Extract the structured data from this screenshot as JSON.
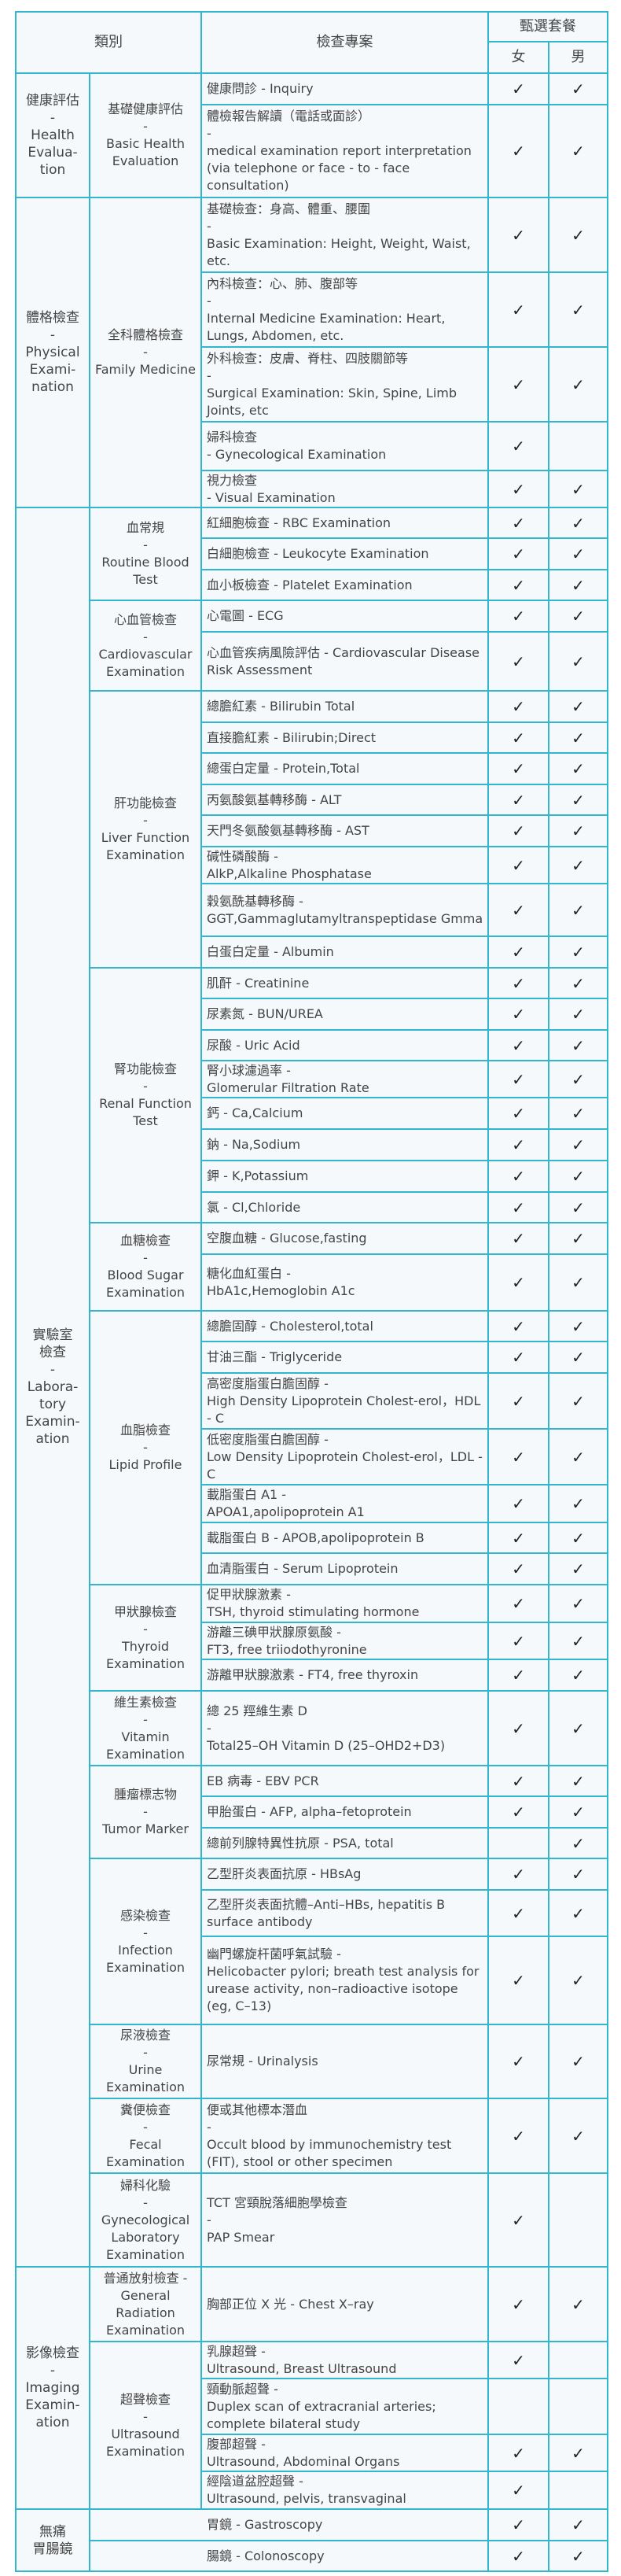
{
  "header": {
    "category": "類別",
    "items": "檢查專案",
    "package": "甄選套餐",
    "female": "女",
    "male": "男"
  },
  "check_glyph": "✓",
  "colors": {
    "border": "#33b6cc",
    "background": "#f6f9fb",
    "text": "#444444"
  },
  "groups": [
    {
      "category": "健康評估\n-\nHealth\nEvalua-\ntion",
      "subgroups": [
        {
          "name": "基礎健康評估\n-\nBasic Health Evaluation",
          "items": [
            {
              "text": "健康問診 - Inquiry",
              "female": true,
              "male": true
            },
            {
              "text": "體檢報告解讀（電話或面診）\n-\nmedical examination report interpretation (via telephone or face - to - face consultation)",
              "female": true,
              "male": true
            }
          ]
        }
      ]
    },
    {
      "category": "體格檢查\n-\nPhysical\nExami-\nnation",
      "subgroups": [
        {
          "name": "全科體格檢查\n-\nFamily Medicine",
          "items": [
            {
              "text": "基礎檢查：身高、體重、腰圍\n-\nBasic Examination: Height, Weight, Waist, etc.",
              "female": true,
              "male": true
            },
            {
              "text": "內科檢查：心、肺、腹部等\n-\nInternal Medicine Examination: Heart, Lungs, Abdomen, etc.",
              "female": true,
              "male": true
            },
            {
              "text": "外科檢查：皮膚、脊柱、四肢關節等\n-\nSurgical Examination: Skin, Spine, Limb Joints, etc",
              "female": true,
              "male": true
            },
            {
              "text": "婦科檢查\n- Gynecological Examination",
              "female": true,
              "male": false
            },
            {
              "text": "視力檢查\n- Visual Examination",
              "female": true,
              "male": true
            }
          ]
        }
      ]
    },
    {
      "category": "實驗室\n檢查\n-\nLabora-\ntory\nExamin-\nation",
      "subgroups": [
        {
          "name": "血常規\n-\nRoutine Blood Test",
          "items": [
            {
              "text": "紅細胞檢查 - RBC Examination",
              "female": true,
              "male": true
            },
            {
              "text": "白細胞檢查 - Leukocyte Examination",
              "female": true,
              "male": true
            },
            {
              "text": "血小板檢查 - Platelet Examination",
              "female": true,
              "male": true
            }
          ]
        },
        {
          "name": "心血管檢查\n-\nCardiovascular Examination",
          "items": [
            {
              "text": "心電圖 - ECG",
              "female": true,
              "male": true
            },
            {
              "text": "心血管疾病風險評估 - Cardiovascular Disease Risk Assessment",
              "female": true,
              "male": true
            }
          ]
        },
        {
          "name": "肝功能檢查\n-\nLiver Function Examination",
          "items": [
            {
              "text": "總膽紅素 - Bilirubin Total",
              "female": true,
              "male": true
            },
            {
              "text": "直接膽紅素 - Bilirubin;Direct",
              "female": true,
              "male": true
            },
            {
              "text": "總蛋白定量 - Protein,Total",
              "female": true,
              "male": true
            },
            {
              "text": "丙氨酸氨基轉移酶 - ALT",
              "female": true,
              "male": true
            },
            {
              "text": "天門冬氨酸氨基轉移酶 - AST",
              "female": true,
              "male": true
            },
            {
              "text": "碱性磷酸酶 -\nAlkP,Alkaline Phosphatase",
              "female": true,
              "male": true
            },
            {
              "text": "穀氨酰基轉移酶 -\nGGT,Gammaglutamyltranspeptidase Gmma",
              "female": true,
              "male": true
            },
            {
              "text": "白蛋白定量 - Albumin",
              "female": true,
              "male": true
            }
          ]
        },
        {
          "name": "腎功能檢查\n-\nRenal Function Test",
          "items": [
            {
              "text": "肌酐 - Creatinine",
              "female": true,
              "male": true
            },
            {
              "text": "尿素氮 - BUN/UREA",
              "female": true,
              "male": true
            },
            {
              "text": "尿酸 - Uric Acid",
              "female": true,
              "male": true
            },
            {
              "text": "腎小球濾過率 -\nGlomerular Filtration Rate",
              "female": true,
              "male": true
            },
            {
              "text": "鈣 - Ca,Calcium",
              "female": true,
              "male": true
            },
            {
              "text": "鈉 - Na,Sodium",
              "female": true,
              "male": true
            },
            {
              "text": "鉀 - K,Potassium",
              "female": true,
              "male": true
            },
            {
              "text": "氯 - Cl,Chloride",
              "female": true,
              "male": true
            }
          ]
        },
        {
          "name": "血糖檢查\n-\nBlood Sugar Examination",
          "items": [
            {
              "text": "空腹血糖 - Glucose,fasting",
              "female": true,
              "male": true
            },
            {
              "text": "糖化血紅蛋白 -\nHbA1c,Hemoglobin A1c",
              "female": true,
              "male": true
            }
          ]
        },
        {
          "name": "血脂檢查\n-\nLipid Profile",
          "items": [
            {
              "text": "總膽固醇 - Cholesterol,total",
              "female": true,
              "male": true
            },
            {
              "text": "甘油三酯 - Triglyceride",
              "female": true,
              "male": true
            },
            {
              "text": "高密度脂蛋白膽固醇 -\nHigh Density Lipoprotein Cholest-erol，HDL - C",
              "female": true,
              "male": true
            },
            {
              "text": "低密度脂蛋白膽固醇 -\nLow Density Lipoprotein Cholest-erol，LDL - C",
              "female": true,
              "male": true
            },
            {
              "text": "載脂蛋白 A1 -\nAPOA1,apolipoprotein A1",
              "female": true,
              "male": true
            },
            {
              "text": "載脂蛋白 B - APOB,apolipoprotein B",
              "female": true,
              "male": true
            },
            {
              "text": "血清脂蛋白 - Serum Lipoprotein",
              "female": true,
              "male": true
            }
          ]
        },
        {
          "name": "甲狀腺檢查\n-\nThyroid Examination",
          "items": [
            {
              "text": "促甲狀腺激素 -\nTSH, thyroid stimulating hormone",
              "female": true,
              "male": true
            },
            {
              "text": "游離三碘甲狀腺原氨酸 -\nFT3, free triiodothyronine",
              "female": true,
              "male": true
            },
            {
              "text": "游離甲狀腺激素 - FT4, free thyroxin",
              "female": true,
              "male": true
            }
          ]
        },
        {
          "name": "維生素檢查\n-\nVitamin Examination",
          "items": [
            {
              "text": "總 25 羥維生素 D\n-\nTotal25–OH Vitamin D (25–OHD2+D3)",
              "female": true,
              "male": true
            }
          ]
        },
        {
          "name": "腫瘤標志物\n-\nTumor Marker",
          "items": [
            {
              "text": "EB 病毒 - EBV PCR",
              "female": true,
              "male": true
            },
            {
              "text": "甲胎蛋白 - AFP, alpha–fetoprotein",
              "female": true,
              "male": true
            },
            {
              "text": "總前列腺特異性抗原 - PSA, total",
              "female": false,
              "male": true
            }
          ]
        },
        {
          "name": "感染檢查\n-\nInfection Examination",
          "items": [
            {
              "text": "乙型肝炎表面抗原 - HBsAg",
              "female": true,
              "male": true
            },
            {
              "text": "乙型肝炎表面抗體–Anti–HBs, hepatitis B surface antibody",
              "female": true,
              "male": true
            },
            {
              "text": "幽門螺旋杆菌呼氣試驗 -\nHelicobacter pylori; breath test analysis for urease activity, non–radioactive isotope (eg, C–13)",
              "female": true,
              "male": true
            }
          ]
        },
        {
          "name": "尿液檢查\n-\nUrine Examination",
          "items": [
            {
              "text": "尿常規 - Urinalysis",
              "female": true,
              "male": true
            }
          ]
        },
        {
          "name": "糞便檢查\n-\nFecal Examination",
          "items": [
            {
              "text": "便或其他標本潛血\n-\nOccult blood by immunochemistry test (FIT), stool or other specimen",
              "female": true,
              "male": true
            }
          ]
        },
        {
          "name": "婦科化驗\n-\nGynecological Laboratory Examination",
          "items": [
            {
              "text": "TCT 宮頸脫落細胞學檢查\n-\nPAP Smear",
              "female": true,
              "male": false
            }
          ]
        }
      ]
    },
    {
      "category": "影像檢查\n-\nImaging\nExamin-\nation",
      "subgroups": [
        {
          "name": "普通放射檢查 -\nGeneral Radiation Examination",
          "items": [
            {
              "text": "胸部正位 X 光 - Chest X–ray",
              "female": true,
              "male": true
            }
          ]
        },
        {
          "name": "超聲檢查\n-\nUltrasound Examination",
          "items": [
            {
              "text": "乳腺超聲 -\nUltrasound, Breast Ultrasound",
              "female": true,
              "male": false
            },
            {
              "text": "頸動脈超聲 -\nDuplex scan of extracranial arteries; complete bilateral study",
              "female": false,
              "male": false
            },
            {
              "text": "腹部超聲 -\nUltrasound, Abdominal Organs",
              "female": true,
              "male": true
            },
            {
              "text": "經陰道盆腔超聲 -\nUltrasound, pelvis, transvaginal",
              "female": true,
              "male": false
            }
          ]
        }
      ]
    },
    {
      "category": "無痛\n胃腸鏡",
      "subgroups": [
        {
          "name": null,
          "items": [
            {
              "text": "胃鏡 - Gastroscopy",
              "female": true,
              "male": true
            },
            {
              "text": "腸鏡 - Colonoscopy",
              "female": true,
              "male": true
            }
          ]
        }
      ]
    }
  ]
}
